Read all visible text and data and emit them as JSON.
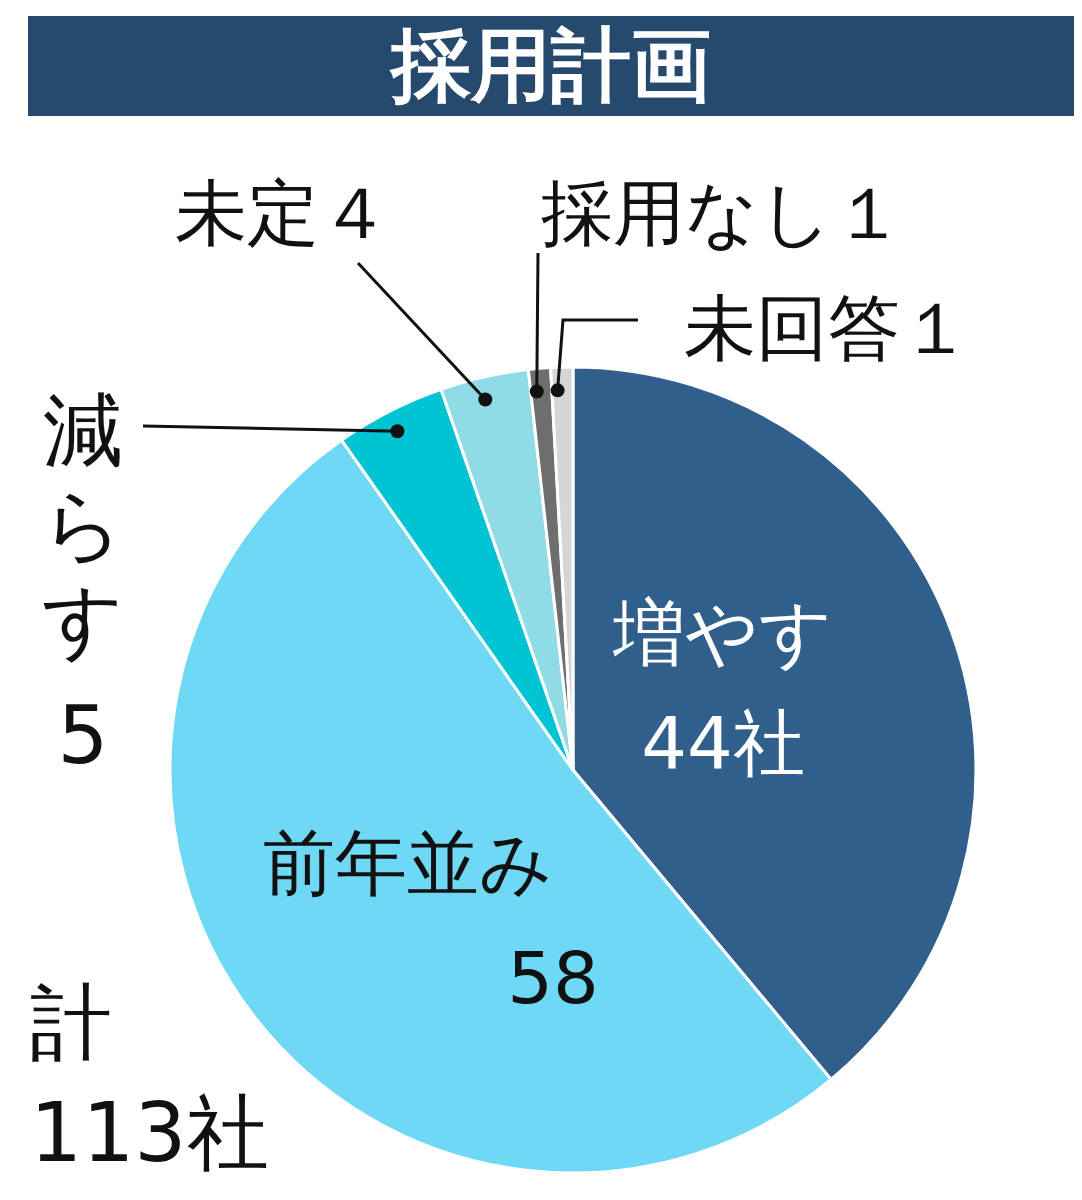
{
  "chart_data": {
    "type": "pie",
    "title": "採用計画",
    "categories": [
      "増やす",
      "前年並み",
      "減らす",
      "未定",
      "採用なし",
      "未回答"
    ],
    "values": [
      44,
      58,
      5,
      4,
      1,
      1
    ],
    "colors": [
      "#2f5f8a",
      "#6fd8f5",
      "#00c4d4",
      "#8fdce6",
      "#6e6e6e",
      "#d6d6d6"
    ],
    "value_labels": [
      "44社",
      "58",
      "5",
      "４",
      "１",
      "１"
    ],
    "annotations": [
      "計\n113社"
    ]
  }
}
